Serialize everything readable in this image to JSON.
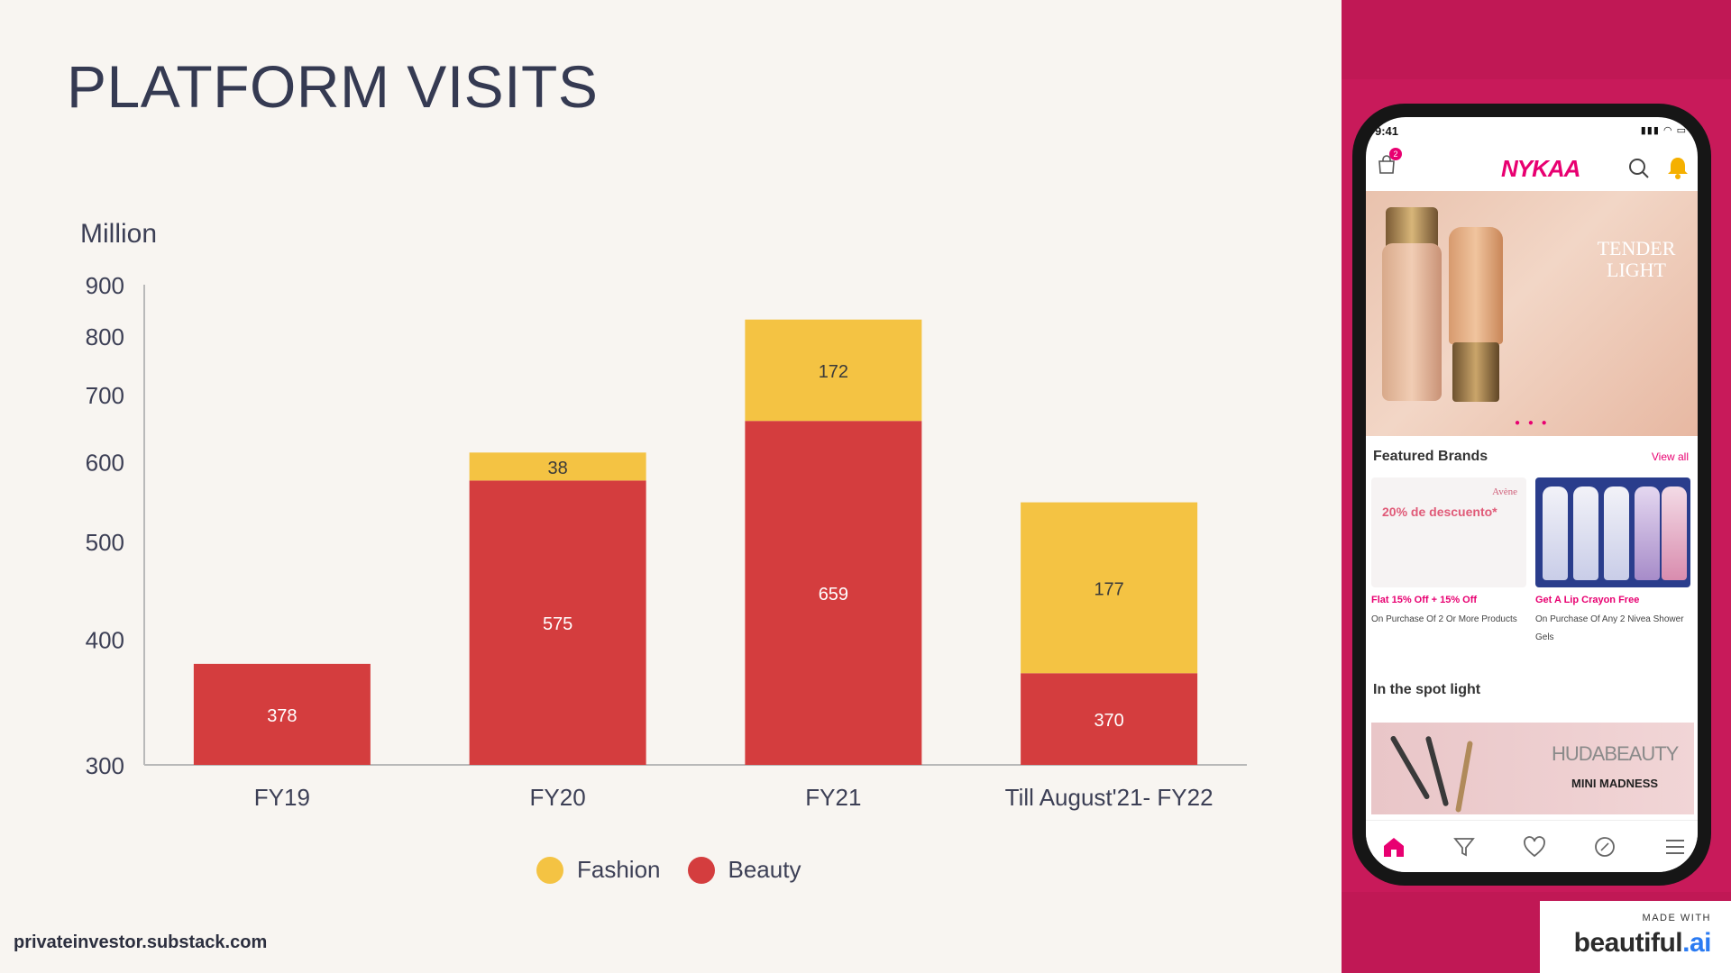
{
  "slide": {
    "title": "PLATFORM VISITS",
    "source": "privateinvestor.substack.com"
  },
  "chart_data": {
    "type": "bar",
    "stacked": true,
    "unit_label": "Million",
    "categories": [
      "FY19",
      "FY20",
      "FY21",
      "Till August'21- FY22"
    ],
    "series": [
      {
        "name": "Beauty",
        "color": "#d43d3e",
        "values": [
          378,
          575,
          659,
          370
        ]
      },
      {
        "name": "Fashion",
        "color": "#f4c343",
        "values": [
          0,
          38,
          172,
          177
        ]
      }
    ],
    "y_ticks": [
      300,
      400,
      500,
      600,
      700,
      800,
      900
    ],
    "ylim": [
      300,
      900
    ],
    "y_scale": "log",
    "grid": false,
    "legend_position": "bottom",
    "legend": [
      {
        "name": "Fashion",
        "color": "#f4c343"
      },
      {
        "name": "Beauty",
        "color": "#d43d3e"
      }
    ]
  },
  "phone": {
    "status_time": "9:41",
    "status_icons": "▮▮▮ ◠ ▭",
    "cart_count": "2",
    "brand": "NYKAA",
    "hero_text": "TENDER LIGHT",
    "hero_dots": "● ● ●",
    "featured_title": "Featured Brands",
    "view_all": "View all",
    "cards": [
      {
        "promo": "20% de descuento*",
        "product_brand": "Avène",
        "offer": "Flat 15% Off + 15% Off",
        "desc": "On Purchase Of 2 Or More Products"
      },
      {
        "offer": "Get A Lip Crayon Free",
        "desc": "On Purchase Of Any 2 Nivea Shower Gels"
      }
    ],
    "spotlight_title": "In the spot light",
    "spotlight_brand": "HUDABEAUTY",
    "spotlight_sub": "MINI MADNESS"
  },
  "watermark": {
    "made_with": "MADE WITH",
    "brand": "beautiful",
    "brand_suffix": ".ai"
  }
}
